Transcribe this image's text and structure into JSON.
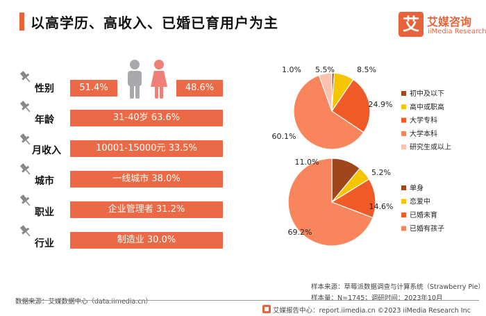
{
  "title": "以高学历、高收入、已婚已育用户为主",
  "logo": {
    "mark": "艾",
    "name": "艾媒咨询",
    "en": "iiMedia Research"
  },
  "profile": {
    "gender": {
      "label": "性别",
      "male": "51.4%",
      "female": "48.6%"
    },
    "rows": [
      {
        "label": "年龄",
        "text": "31-40岁  63.6%"
      },
      {
        "label": "月收入",
        "text": "10001-15000元    33.5%"
      },
      {
        "label": "城市",
        "text": "一线城市    38.0%"
      },
      {
        "label": "职业",
        "text": "企业管理者    31.2%"
      },
      {
        "label": "行业",
        "text": "制造业    30.0%"
      }
    ]
  },
  "chart_data": [
    {
      "type": "pie",
      "title": "",
      "categories": [
        "初中及以下",
        "高中或职高",
        "大学专科",
        "大学本科",
        "研究生或以上"
      ],
      "values": [
        1.0,
        8.5,
        24.9,
        60.1,
        5.5
      ],
      "labels": [
        "1.0%",
        "8.5%",
        "24.9%",
        "60.1%",
        "5.5%"
      ],
      "colors": [
        "#a0461c",
        "#f7c400",
        "#f05a26",
        "#f9855d",
        "#f9c3b0"
      ],
      "legend": "right"
    },
    {
      "type": "pie",
      "title": "",
      "categories": [
        "单身",
        "恋爱中",
        "已婚未育",
        "已婚有孩子"
      ],
      "values": [
        11.0,
        5.2,
        14.6,
        69.2
      ],
      "labels": [
        "11.0%",
        "5.2%",
        "14.6%",
        "69.2%"
      ],
      "colors": [
        "#a0461c",
        "#f7c400",
        "#f05a26",
        "#f9855d"
      ],
      "legend": "right"
    }
  ],
  "footer": {
    "left": "数据来源：艾媒数据中心（data.iimedia.cn）",
    "source": "样本来源：草莓派数据调查与计算系统（Strawberry Pie）",
    "sample": "样本量：N=1745；调研时间：2023年10月",
    "copyright": "艾媒报告中心：report.iimedia.cn  ©2023  iiMedia Research  Inc"
  }
}
